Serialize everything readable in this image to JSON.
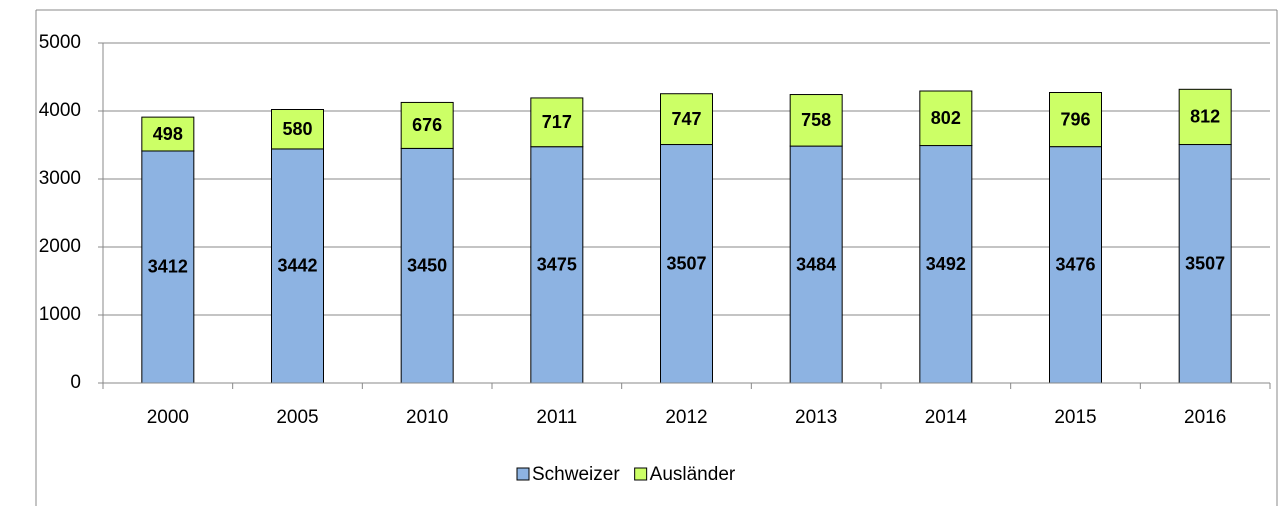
{
  "chart_data": {
    "type": "bar",
    "stacked": true,
    "categories": [
      "2000",
      "2005",
      "2010",
      "2011",
      "2012",
      "2013",
      "2014",
      "2015",
      "2016"
    ],
    "series": [
      {
        "name": "Schweizer",
        "color": "#8db3e2",
        "values": [
          3412,
          3442,
          3450,
          3475,
          3507,
          3484,
          3492,
          3476,
          3507
        ]
      },
      {
        "name": "Ausländer",
        "color": "#ccff66",
        "values": [
          498,
          580,
          676,
          717,
          747,
          758,
          802,
          796,
          812
        ]
      }
    ],
    "ylim": [
      0,
      5000
    ],
    "yticks": [
      0,
      1000,
      2000,
      3000,
      4000,
      5000
    ],
    "grid": true,
    "legend": "bottom"
  }
}
